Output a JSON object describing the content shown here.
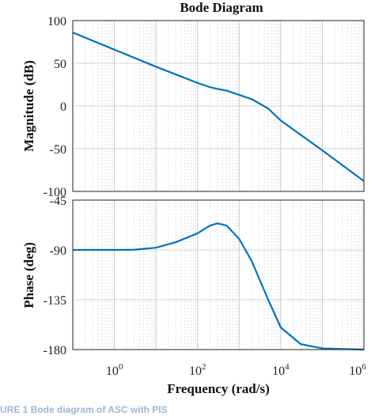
{
  "title": "Bode Diagram",
  "caption": "URE 1 Bode diagram of ASC with PIS",
  "chart_data": [
    {
      "type": "line",
      "panel": "magnitude",
      "title": "Bode Diagram",
      "ylabel": "Magnitude (dB)",
      "xscale": "log",
      "xlim": [
        0.1,
        1000000
      ],
      "ylim": [
        -100,
        100
      ],
      "yticks": [
        100,
        50,
        0,
        -50,
        -100
      ],
      "grid": true,
      "series": [
        {
          "color": "#0072BD",
          "points": [
            [
              0.1,
              86
            ],
            [
              1,
              66
            ],
            [
              10,
              46
            ],
            [
              100,
              27
            ],
            [
              200,
              22
            ],
            [
              300,
              20
            ],
            [
              500,
              18
            ],
            [
              1000,
              13
            ],
            [
              2000,
              8
            ],
            [
              5000,
              -3
            ],
            [
              10000,
              -17
            ],
            [
              100000,
              -52
            ],
            [
              1000000,
              -88
            ]
          ]
        }
      ]
    },
    {
      "type": "line",
      "panel": "phase",
      "xlabel": "Frequency  (rad/s)",
      "ylabel": "Phase (deg)",
      "xscale": "log",
      "xlim": [
        0.1,
        1000000
      ],
      "ylim": [
        -180,
        -45
      ],
      "yticks": [
        -45,
        -90,
        -135,
        -180
      ],
      "xticks": [
        "10^0",
        "10^2",
        "10^4",
        "10^6"
      ],
      "grid": true,
      "series": [
        {
          "color": "#0072BD",
          "points": [
            [
              0.1,
              -90
            ],
            [
              1,
              -90
            ],
            [
              3,
              -89.8
            ],
            [
              10,
              -88
            ],
            [
              30,
              -83
            ],
            [
              100,
              -75
            ],
            [
              200,
              -68
            ],
            [
              300,
              -66
            ],
            [
              500,
              -68
            ],
            [
              1000,
              -80
            ],
            [
              2000,
              -100
            ],
            [
              5000,
              -135
            ],
            [
              10000,
              -160
            ],
            [
              30000,
              -175
            ],
            [
              100000,
              -179
            ],
            [
              1000000,
              -180
            ]
          ]
        }
      ]
    }
  ]
}
